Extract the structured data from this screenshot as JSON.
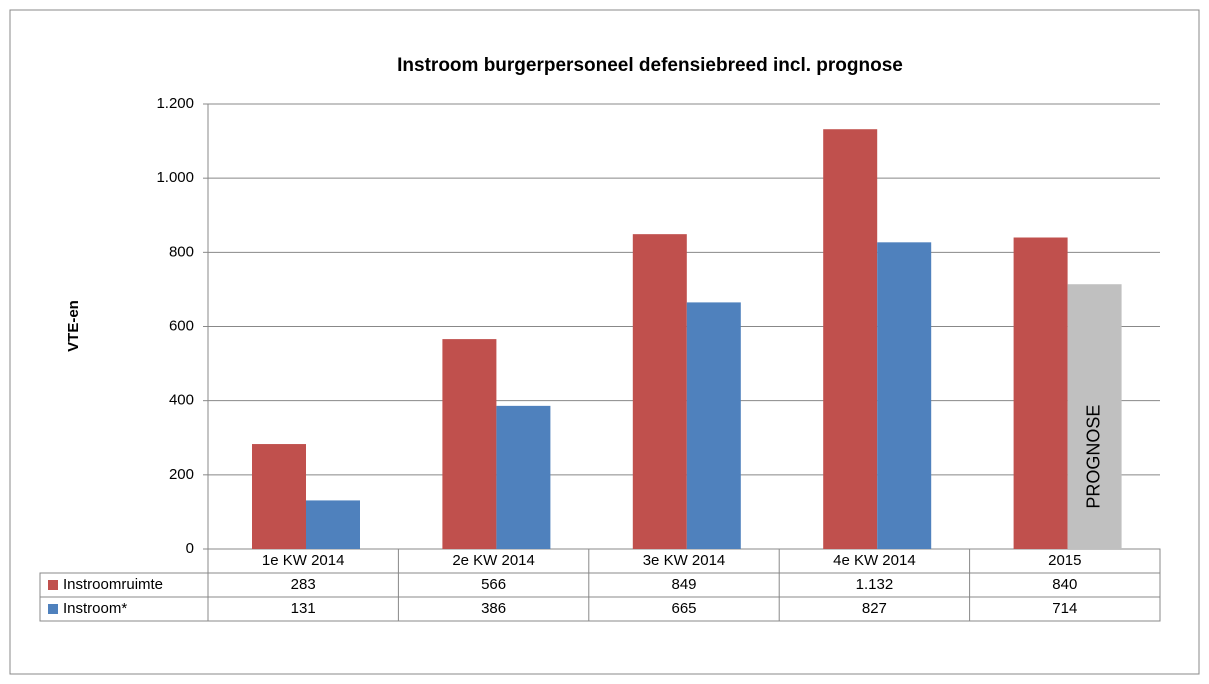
{
  "chart_data": {
    "type": "bar",
    "title": "Instroom burgerpersoneel defensiebreed incl. prognose",
    "y_label": "VTE-en",
    "categories": [
      "1e KW 2014",
      "2e KW 2014",
      "3e KW 2014",
      "4e KW 2014",
      "2015"
    ],
    "series": [
      {
        "name": "Instroomruimte",
        "color": "#c0504d",
        "values": [
          283,
          566,
          849,
          1132,
          840
        ],
        "value_labels": [
          "283",
          "566",
          "849",
          "1.132",
          "840"
        ]
      },
      {
        "name": "Instroom*",
        "color": "#4f81bd",
        "colors": [
          "#4f81bd",
          "#4f81bd",
          "#4f81bd",
          "#4f81bd",
          "#c0c0c0"
        ],
        "values": [
          131,
          386,
          665,
          827,
          714
        ]
      }
    ],
    "annotation": "PROGNOSE",
    "ylim": [
      0,
      1200
    ],
    "yticks": [
      0,
      200,
      400,
      600,
      800,
      {
        "value": 1000,
        "label": "1.000"
      },
      {
        "value": 1200,
        "label": "1.200"
      }
    ],
    "grid": true
  }
}
